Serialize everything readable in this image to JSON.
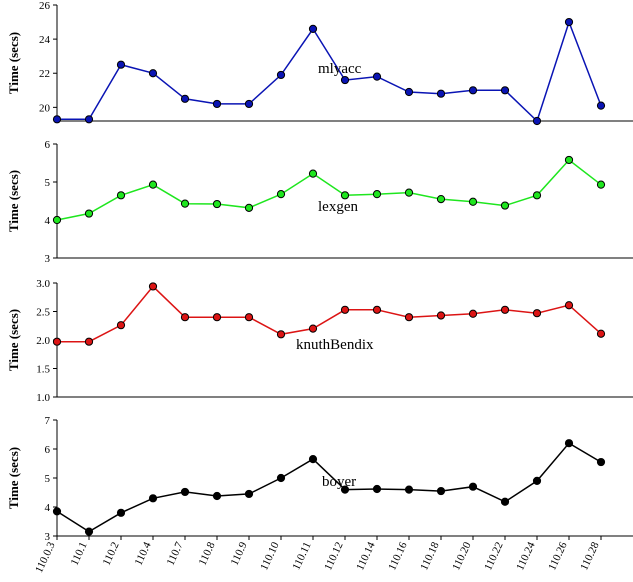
{
  "chart_data": {
    "type": "line",
    "layout": "stacked-panels-shared-x",
    "categories": [
      "110.0.3",
      "110.1",
      "110.2",
      "110.4",
      "110.7",
      "110.8",
      "110.9",
      "110.10",
      "110.11",
      "110.12",
      "110.14",
      "110.16",
      "110.18",
      "110.20",
      "110.22",
      "110.24",
      "110.26",
      "110.28"
    ],
    "panels": [
      {
        "series_name": "mlyacc",
        "ylabel": "Time (secs)",
        "ylim": [
          19.2,
          26
        ],
        "yticks": [
          20,
          22,
          24,
          26
        ],
        "ytick_labels": [
          "20",
          "22",
          "24",
          "26"
        ],
        "color": "#0a14b4",
        "values": [
          19.3,
          19.3,
          22.5,
          22.0,
          20.5,
          20.2,
          20.2,
          21.9,
          24.6,
          21.6,
          21.8,
          20.9,
          20.8,
          21.0,
          21.0,
          19.2,
          25.0,
          20.1
        ]
      },
      {
        "series_name": "lexgen",
        "ylabel": "Time (secs)",
        "ylim": [
          3,
          6
        ],
        "yticks": [
          3,
          4,
          5,
          6
        ],
        "ytick_labels": [
          "3",
          "4",
          "5",
          "6"
        ],
        "color": "#1ee61e",
        "values": [
          4.0,
          4.17,
          4.65,
          4.93,
          4.43,
          4.42,
          4.32,
          4.68,
          5.22,
          4.65,
          4.68,
          4.72,
          4.55,
          4.48,
          4.38,
          4.65,
          5.58,
          4.93
        ]
      },
      {
        "series_name": "knuthBendix",
        "ylabel": "Time (secs)",
        "ylim": [
          1.0,
          3.0
        ],
        "yticks": [
          1.0,
          1.5,
          2.0,
          2.5,
          3.0
        ],
        "ytick_labels": [
          "1.0",
          "1.5",
          "2.0",
          "2.5",
          "3.0"
        ],
        "color": "#dc1414",
        "values": [
          1.97,
          1.97,
          2.26,
          2.94,
          2.4,
          2.4,
          2.4,
          2.1,
          2.2,
          2.53,
          2.53,
          2.4,
          2.43,
          2.46,
          2.53,
          2.47,
          2.61,
          2.11
        ]
      },
      {
        "series_name": "boyer",
        "ylabel": "Time (secs)",
        "ylim": [
          3,
          7
        ],
        "yticks": [
          3,
          4,
          5,
          6,
          7
        ],
        "ytick_labels": [
          "3",
          "4",
          "5",
          "6",
          "7"
        ],
        "color": "#000000",
        "values": [
          3.85,
          3.15,
          3.8,
          4.3,
          4.52,
          4.38,
          4.45,
          5.0,
          5.65,
          4.6,
          4.62,
          4.6,
          4.55,
          4.7,
          4.18,
          4.9,
          6.2,
          5.55
        ]
      }
    ],
    "grid": false,
    "legend": "none"
  }
}
